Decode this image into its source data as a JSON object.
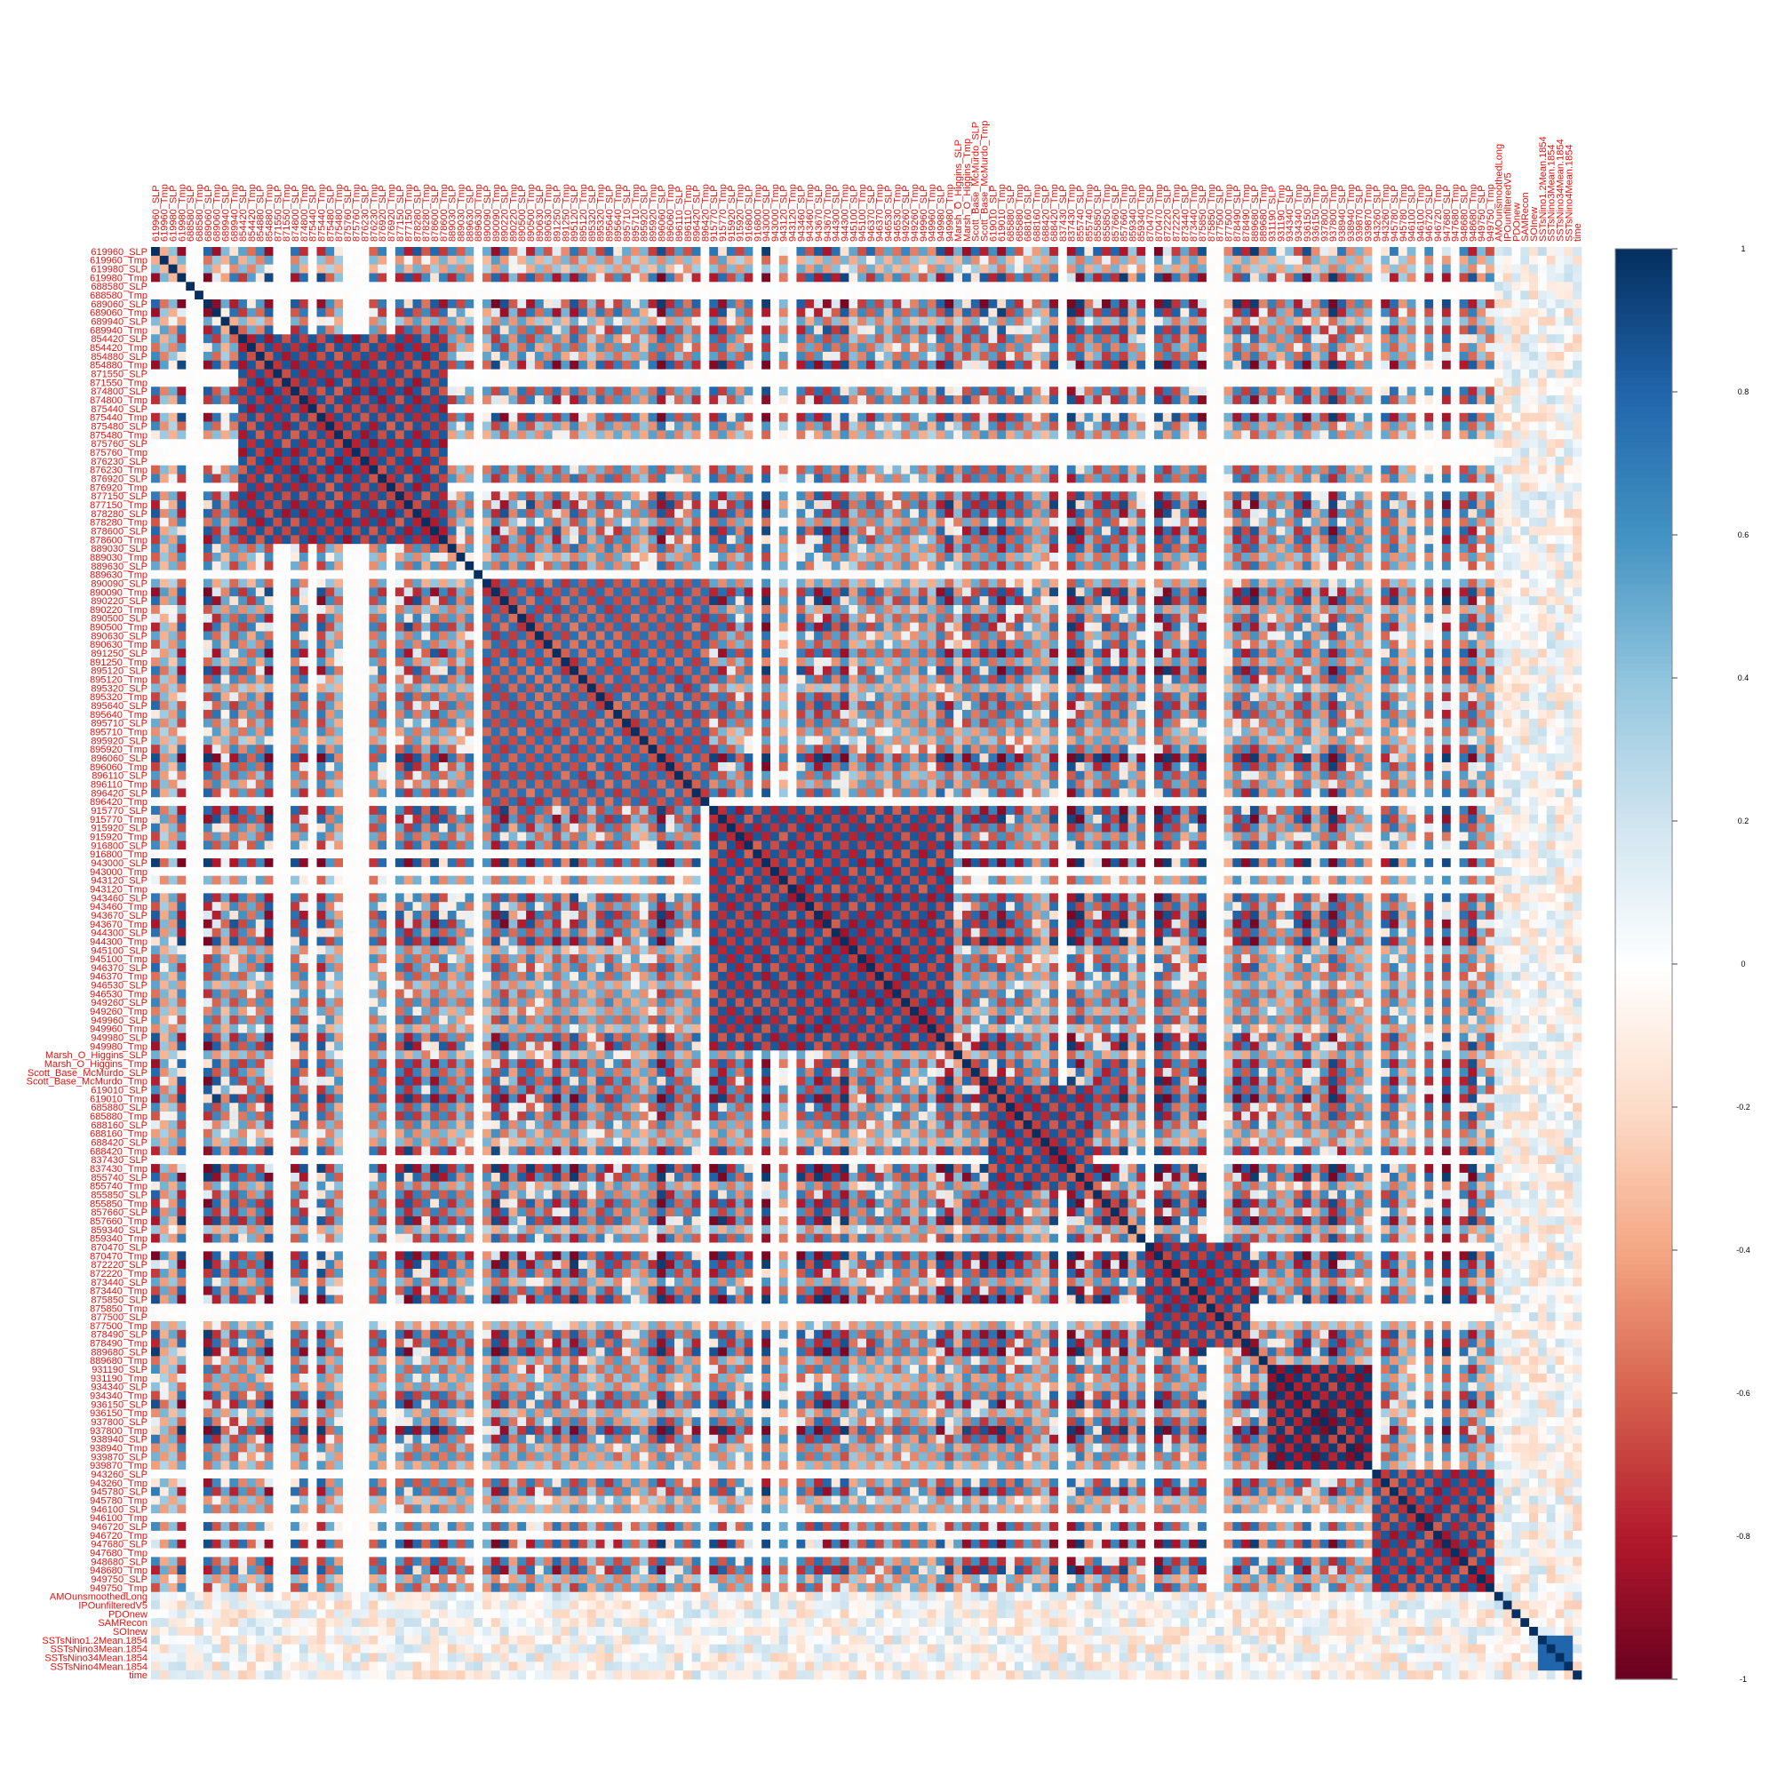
{
  "chart_data": {
    "type": "heatmap",
    "title": "",
    "xlabel": "",
    "ylabel": "",
    "variables": [
      "619960_SLP",
      "619960_Tmp",
      "619980_SLP",
      "619980_Tmp",
      "688580_SLP",
      "688580_Tmp",
      "689060_SLP",
      "689060_Tmp",
      "689940_SLP",
      "689940_Tmp",
      "854420_SLP",
      "854420_Tmp",
      "854880_SLP",
      "854880_Tmp",
      "871550_SLP",
      "871550_Tmp",
      "874800_SLP",
      "874800_Tmp",
      "875440_SLP",
      "875440_Tmp",
      "875480_SLP",
      "875480_Tmp",
      "875760_SLP",
      "875760_Tmp",
      "876230_SLP",
      "876230_Tmp",
      "876920_SLP",
      "876920_Tmp",
      "877150_SLP",
      "877150_Tmp",
      "878280_SLP",
      "878280_Tmp",
      "878600_SLP",
      "878600_Tmp",
      "889030_SLP",
      "889030_Tmp",
      "889630_SLP",
      "889630_Tmp",
      "890090_SLP",
      "890090_Tmp",
      "890220_SLP",
      "890220_Tmp",
      "890500_SLP",
      "890500_Tmp",
      "890630_SLP",
      "890630_Tmp",
      "891250_SLP",
      "891250_Tmp",
      "895120_SLP",
      "895120_Tmp",
      "895320_SLP",
      "895320_Tmp",
      "895640_SLP",
      "895640_Tmp",
      "895710_SLP",
      "895710_Tmp",
      "895920_SLP",
      "895920_Tmp",
      "896060_SLP",
      "896060_Tmp",
      "896110_SLP",
      "896110_Tmp",
      "896420_SLP",
      "896420_Tmp",
      "915770_SLP",
      "915770_Tmp",
      "915920_SLP",
      "915920_Tmp",
      "916800_SLP",
      "916800_Tmp",
      "943000_SLP",
      "943000_Tmp",
      "943120_SLP",
      "943120_Tmp",
      "943460_SLP",
      "943460_Tmp",
      "943670_SLP",
      "943670_Tmp",
      "944300_SLP",
      "944300_Tmp",
      "945100_SLP",
      "945100_Tmp",
      "946370_SLP",
      "946370_Tmp",
      "946530_SLP",
      "946530_Tmp",
      "949260_SLP",
      "949260_Tmp",
      "949960_SLP",
      "949960_Tmp",
      "949980_SLP",
      "949980_Tmp",
      "Marsh_O_Higgins_SLP",
      "Marsh_O_Higgins_Tmp",
      "Scott_Base_McMurdo_SLP",
      "Scott_Base_McMurdo_Tmp",
      "619010_SLP",
      "619010_Tmp",
      "685880_SLP",
      "685880_Tmp",
      "688160_SLP",
      "688160_Tmp",
      "688420_SLP",
      "688420_Tmp",
      "837430_SLP",
      "837430_Tmp",
      "855740_SLP",
      "855740_Tmp",
      "855850_SLP",
      "855850_Tmp",
      "857660_SLP",
      "857660_Tmp",
      "859340_SLP",
      "859340_Tmp",
      "870470_SLP",
      "870470_Tmp",
      "872220_SLP",
      "872220_Tmp",
      "873440_SLP",
      "873440_Tmp",
      "875850_SLP",
      "875850_Tmp",
      "877500_SLP",
      "877500_Tmp",
      "878490_SLP",
      "878490_Tmp",
      "889680_SLP",
      "889680_Tmp",
      "931190_SLP",
      "931190_Tmp",
      "934340_SLP",
      "934340_Tmp",
      "936150_SLP",
      "936150_Tmp",
      "937800_SLP",
      "937800_Tmp",
      "938940_SLP",
      "938940_Tmp",
      "939870_SLP",
      "939870_Tmp",
      "943260_SLP",
      "943260_Tmp",
      "945780_SLP",
      "945780_Tmp",
      "946100_SLP",
      "946100_Tmp",
      "946720_SLP",
      "946720_Tmp",
      "947680_SLP",
      "947680_Tmp",
      "948680_SLP",
      "948680_Tmp",
      "949750_SLP",
      "949750_Tmp",
      "AMOunsmoothedLong",
      "IPOunfilteredV5",
      "PDOnew",
      "SAMRecon",
      "SOInew",
      "SSTsNino1.2Mean.1854",
      "SSTsNino3Mean.1854",
      "SSTsNino34Mean.1854",
      "SSTsNino4Mean.1854",
      "time"
    ],
    "value_range": [
      -1,
      1
    ],
    "colorbar": {
      "ticks": [
        1,
        0.8,
        0.6,
        0.4,
        0.2,
        0,
        -0.2,
        -0.4,
        -0.6,
        -0.8,
        -1
      ],
      "tick_labels": [
        "1",
        "0.8",
        "0.6",
        "0.4",
        "0.2",
        "0",
        "-0.2",
        "-0.4",
        "-0.6",
        "-0.8",
        "-1"
      ]
    },
    "colors": {
      "strong_negative": "#67001f",
      "negative": "#b2182b",
      "light_negative": "#f4a582",
      "zero": "#ffffff",
      "light_positive": "#92c5de",
      "positive": "#2166ac",
      "strong_positive": "#053061",
      "label_color": "#e4120f"
    },
    "blocks": [
      {
        "from": "854420_SLP",
        "to": "878600_Tmp",
        "pattern": "checker",
        "value": -0.85
      },
      {
        "from": "890090_SLP",
        "to": "896420_Tmp",
        "pattern": "checker",
        "value": 0.75
      },
      {
        "from": "915770_SLP",
        "to": "949980_Tmp",
        "pattern": "checker",
        "value": -0.85
      },
      {
        "from": "619010_SLP",
        "to": "855740_Tmp",
        "pattern": "checker",
        "value": -0.85
      },
      {
        "from": "870470_SLP",
        "to": "878490_Tmp",
        "pattern": "checker",
        "value": -0.85
      },
      {
        "from": "931190_SLP",
        "to": "939870_Tmp",
        "pattern": "checker",
        "value": 0.95
      },
      {
        "from": "943260_SLP",
        "to": "949750_Tmp",
        "pattern": "checker",
        "value": -0.85
      },
      {
        "from": "SSTsNino1.2Mean.1854",
        "to": "SSTsNino4Mean.1854",
        "pattern": "solid",
        "value": 0.8
      }
    ]
  }
}
